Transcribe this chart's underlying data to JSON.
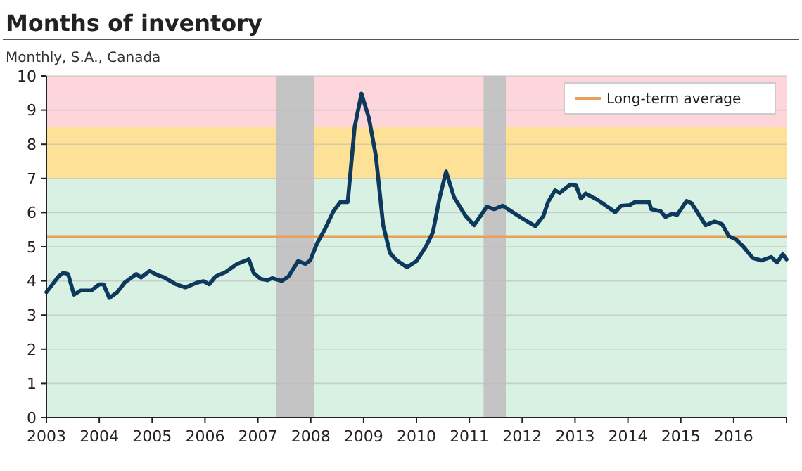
{
  "chart_data": {
    "type": "line",
    "title": "Months of inventory",
    "subtitle": "Monthly, S.A., Canada",
    "x": [
      2003.0,
      2003.23,
      2003.32,
      2003.41,
      2003.52,
      2003.65,
      2003.85,
      2004.0,
      2004.08,
      2004.19,
      2004.34,
      2004.48,
      2004.7,
      2004.79,
      2004.95,
      2005.1,
      2005.23,
      2005.45,
      2005.63,
      2005.85,
      2005.97,
      2006.08,
      2006.2,
      2006.39,
      2006.61,
      2006.83,
      2006.92,
      2007.05,
      2007.18,
      2007.27,
      2007.45,
      2007.58,
      2007.76,
      2007.9,
      2007.99,
      2008.12,
      2008.26,
      2008.43,
      2008.56,
      2008.7,
      2008.83,
      2008.96,
      2009.1,
      2009.23,
      2009.37,
      2009.5,
      2009.63,
      2009.82,
      2010.0,
      2010.18,
      2010.31,
      2010.44,
      2010.56,
      2010.71,
      2010.93,
      2011.09,
      2011.33,
      2011.47,
      2011.63,
      2012.0,
      2012.25,
      2012.4,
      2012.49,
      2012.62,
      2012.71,
      2012.91,
      2013.02,
      2013.11,
      2013.2,
      2013.42,
      2013.76,
      2013.87,
      2014.04,
      2014.13,
      2014.4,
      2014.44,
      2014.62,
      2014.71,
      2014.84,
      2014.93,
      2015.11,
      2015.2,
      2015.33,
      2015.47,
      2015.64,
      2015.78,
      2015.91,
      2016.04,
      2016.18,
      2016.36,
      2016.53,
      2016.71,
      2016.82,
      2016.93,
      2017.0
    ],
    "series": [
      {
        "color": "#0d3a5c",
        "values": [
          3.67,
          4.13,
          4.24,
          4.2,
          3.6,
          3.72,
          3.72,
          3.9,
          3.9,
          3.5,
          3.67,
          3.95,
          4.2,
          4.1,
          4.29,
          4.17,
          4.1,
          3.9,
          3.81,
          3.95,
          3.99,
          3.9,
          4.13,
          4.26,
          4.5,
          4.63,
          4.23,
          4.06,
          4.02,
          4.08,
          4.0,
          4.13,
          4.58,
          4.5,
          4.6,
          5.1,
          5.49,
          6.04,
          6.31,
          6.31,
          8.5,
          9.48,
          8.77,
          7.68,
          5.63,
          4.81,
          4.6,
          4.4,
          4.58,
          5.01,
          5.42,
          6.45,
          7.2,
          6.45,
          5.9,
          5.63,
          6.17,
          6.1,
          6.2,
          5.83,
          5.6,
          5.9,
          6.31,
          6.65,
          6.58,
          6.82,
          6.79,
          6.41,
          6.56,
          6.38,
          6.01,
          6.2,
          6.22,
          6.31,
          6.31,
          6.1,
          6.04,
          5.87,
          5.97,
          5.93,
          6.34,
          6.28,
          5.97,
          5.63,
          5.74,
          5.66,
          5.31,
          5.22,
          5.01,
          4.67,
          4.6,
          4.7,
          4.54,
          4.78,
          4.63
        ]
      }
    ],
    "xlim": [
      2003,
      2017
    ],
    "xticks": [
      2003,
      2004,
      2005,
      2006,
      2007,
      2008,
      2009,
      2010,
      2011,
      2012,
      2013,
      2014,
      2015,
      2016,
      {
        "value": 2017,
        "label": null
      }
    ],
    "ylim": [
      0,
      10
    ],
    "yticks": [
      0,
      1,
      2,
      3,
      4,
      5,
      6,
      7,
      8,
      9,
      10
    ],
    "grid": "y",
    "legend": "top right",
    "marker": "none",
    "line_style": "solid",
    "bands": [
      {
        "axis": "y",
        "from": 8.5,
        "to": 10,
        "color": "#fcd6da"
      },
      {
        "axis": "y",
        "from": 7,
        "to": 8.5,
        "color": "#fde196"
      },
      {
        "axis": "y",
        "from": 0,
        "to": 7,
        "color": "#d8f1e3"
      },
      {
        "axis": "x",
        "from": 2007.35,
        "to": 2008.07,
        "color": "#c4c4c4"
      },
      {
        "axis": "x",
        "from": 2011.27,
        "to": 2011.69,
        "color": "#c4c4c4"
      }
    ],
    "ref_lines": [
      {
        "axis": "y",
        "value": 5.3,
        "label": "Long-term average",
        "color": "#e8a05a"
      }
    ]
  }
}
